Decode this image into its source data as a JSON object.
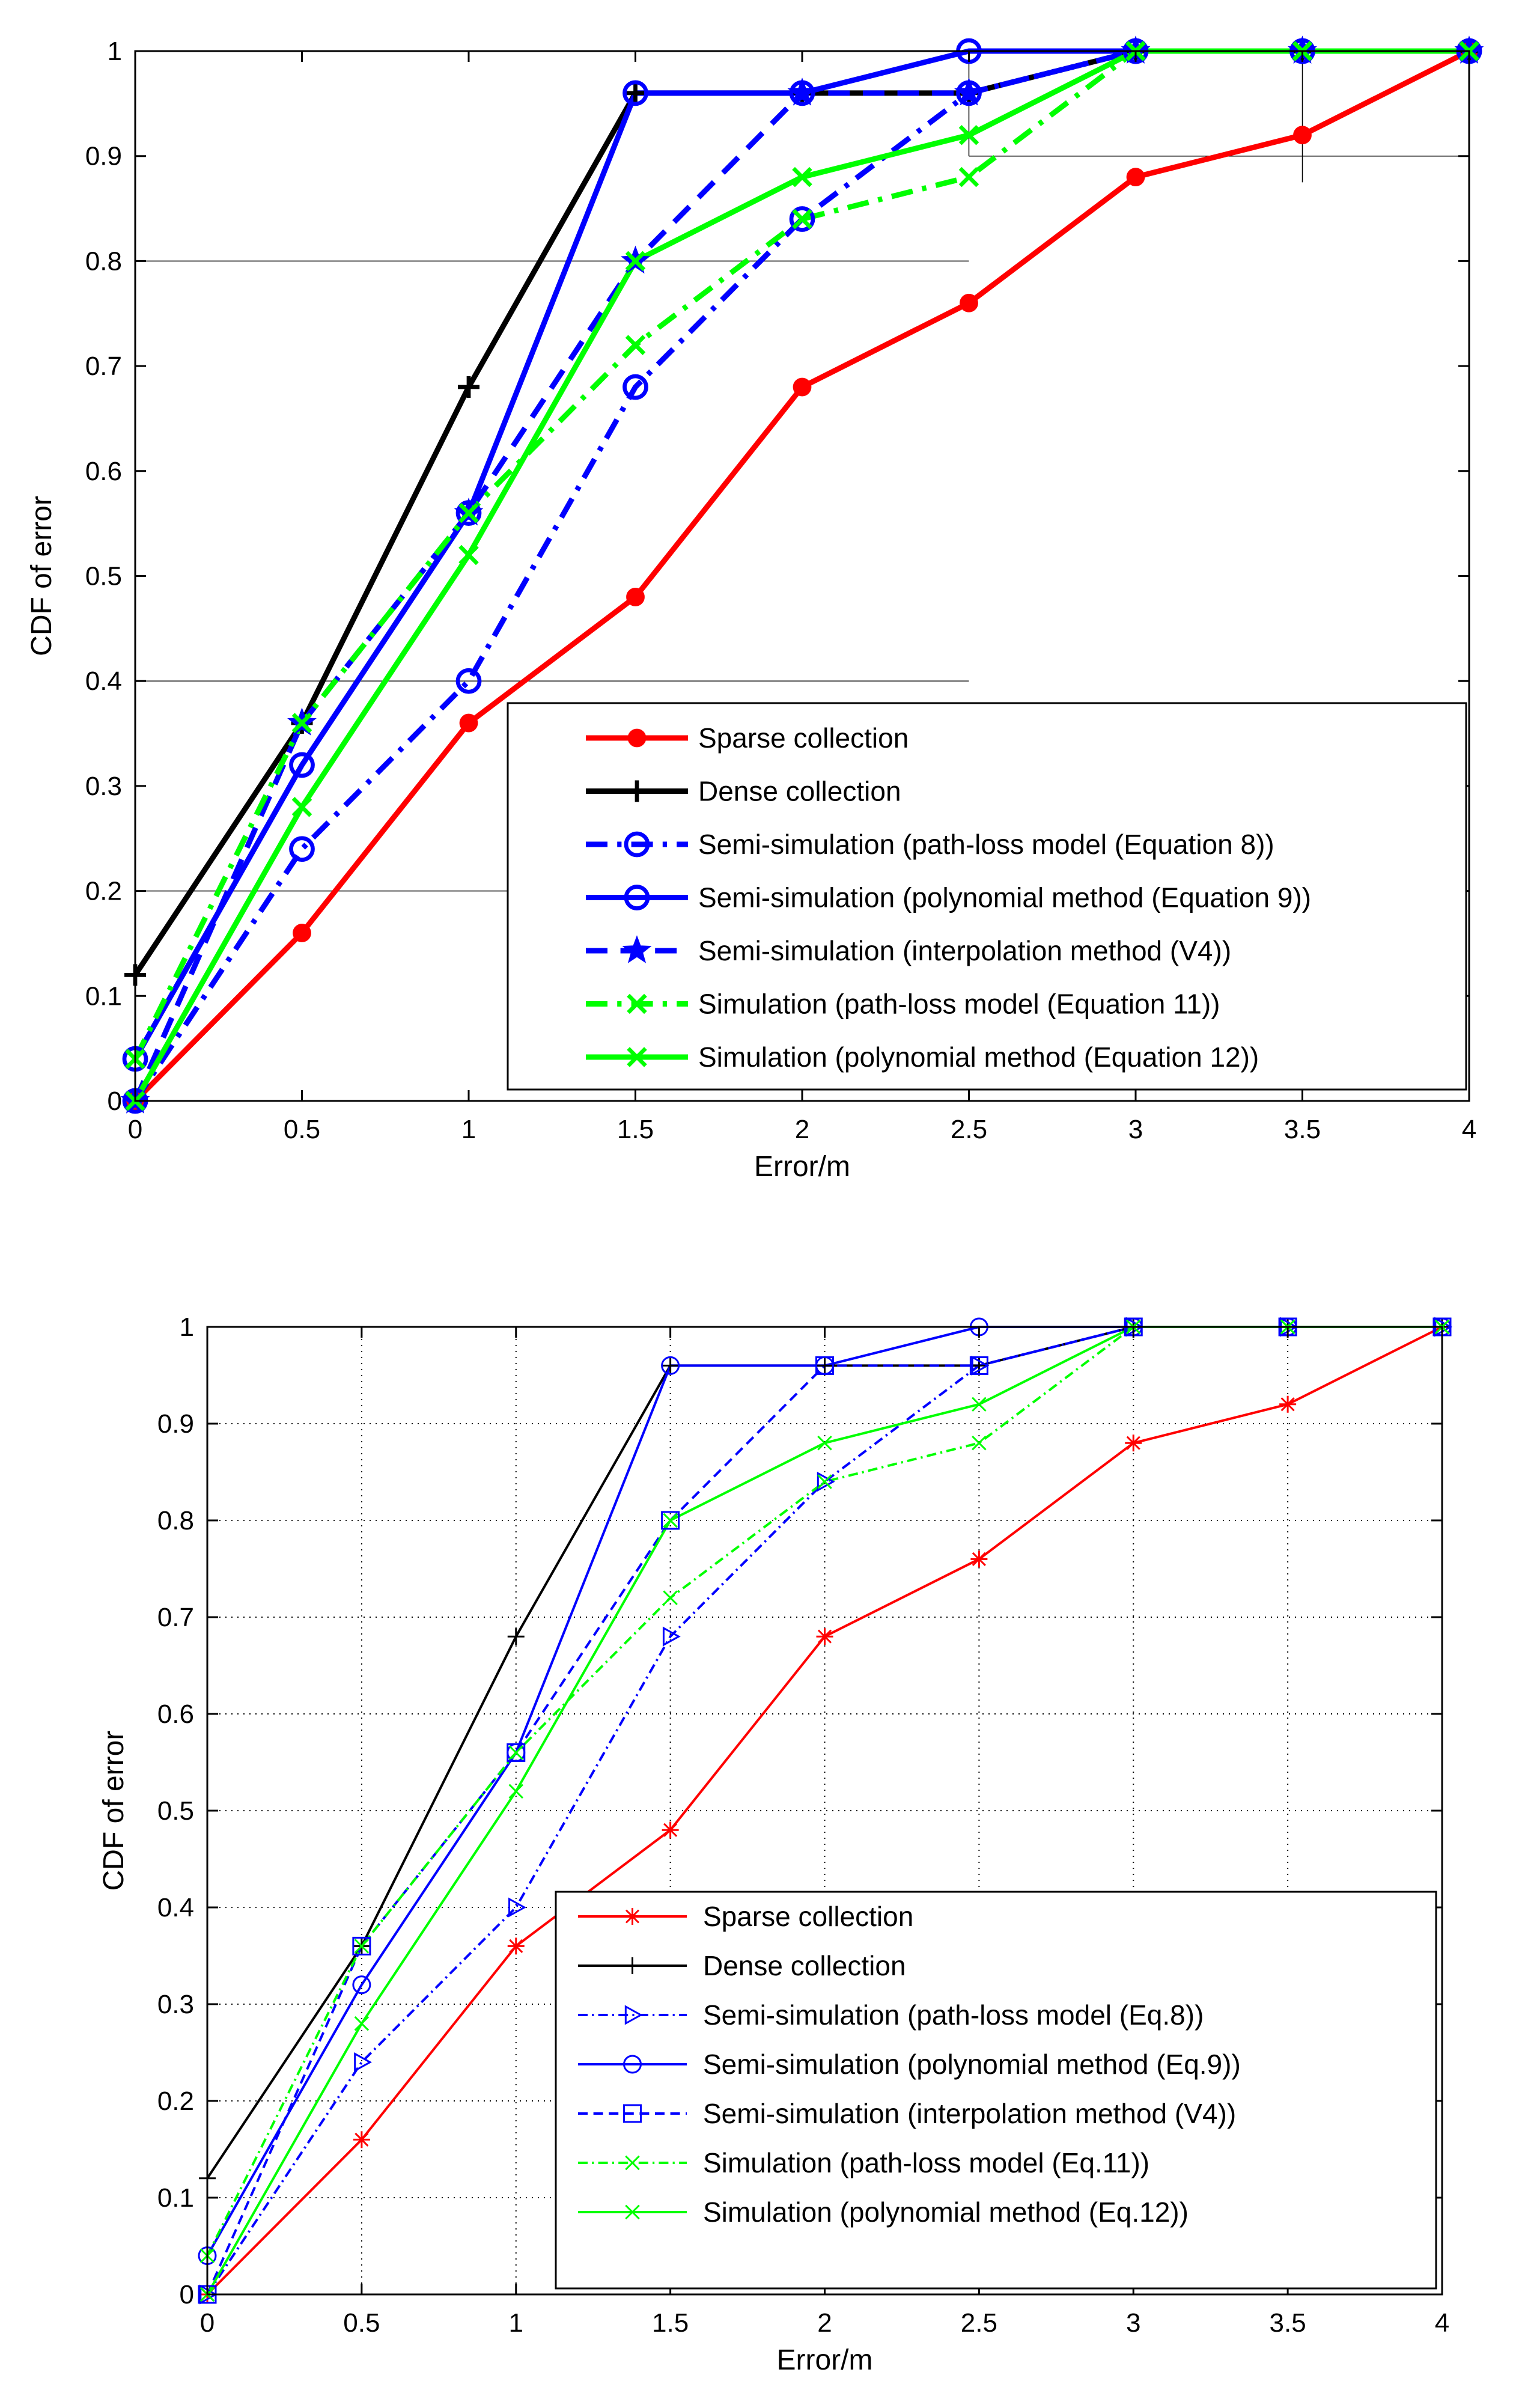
{
  "charts": [
    {
      "chart_data": {
        "type": "line",
        "xlabel": "Error/m",
        "ylabel": "CDF of error",
        "xlim": [
          0,
          4
        ],
        "ylim": [
          0,
          1
        ],
        "xticks": [
          "0",
          "0.5",
          "1",
          "1.5",
          "2",
          "2.5",
          "3",
          "3.5",
          "4"
        ],
        "yticks": [
          "0",
          "0.1",
          "0.2",
          "0.3",
          "0.4",
          "0.5",
          "0.6",
          "0.7",
          "0.8",
          "0.9",
          "1"
        ],
        "x": [
          0,
          0.5,
          1,
          1.5,
          2,
          2.5,
          3,
          3.5,
          4
        ],
        "grid": "partial",
        "legend_position": "bottom-right",
        "series": [
          {
            "name": "Sparse collection",
            "values": [
              0,
              0.16,
              0.36,
              0.48,
              0.68,
              0.76,
              0.88,
              0.92,
              1.0
            ],
            "color": "#ff0000",
            "dash": "solid",
            "marker": "dot"
          },
          {
            "name": "Dense collection",
            "values": [
              0.12,
              0.36,
              0.68,
              0.96,
              0.96,
              0.96,
              1.0,
              1.0,
              1.0
            ],
            "color": "#000000",
            "dash": "solid",
            "marker": "plus"
          },
          {
            "name": "Semi-simulation (path-loss model (Equation 8))",
            "values": [
              0,
              0.24,
              0.4,
              0.68,
              0.84,
              0.96,
              1.0,
              1.0,
              1.0
            ],
            "color": "#0000ff",
            "dash": "dashdot",
            "marker": "circle"
          },
          {
            "name": "Semi-simulation (polynomial method (Equation 9))",
            "values": [
              0.04,
              0.32,
              0.56,
              0.96,
              0.96,
              1.0,
              1.0,
              1.0,
              1.0
            ],
            "color": "#0000ff",
            "dash": "solid",
            "marker": "circle"
          },
          {
            "name": "Semi-simulation (interpolation method (V4))",
            "values": [
              0,
              0.36,
              0.56,
              0.8,
              0.96,
              0.96,
              1.0,
              1.0,
              1.0
            ],
            "color": "#0000ff",
            "dash": "dashed",
            "marker": "star"
          },
          {
            "name": "Simulation (path-loss model (Equation 11))",
            "values": [
              0.04,
              0.36,
              0.56,
              0.72,
              0.84,
              0.88,
              1.0,
              1.0,
              1.0
            ],
            "color": "#00ff00",
            "dash": "dashdot",
            "marker": "x"
          },
          {
            "name": "Simulation (polynomial method (Equation 12))",
            "values": [
              0,
              0.28,
              0.52,
              0.8,
              0.88,
              0.92,
              1.0,
              1.0,
              1.0
            ],
            "color": "#00ff00",
            "dash": "solid",
            "marker": "x"
          }
        ]
      }
    },
    {
      "chart_data": {
        "type": "line",
        "xlabel": "Error/m",
        "ylabel": "CDF of error",
        "xlim": [
          0,
          4
        ],
        "ylim": [
          0,
          1
        ],
        "xticks": [
          "0",
          "0.5",
          "1",
          "1.5",
          "2",
          "2.5",
          "3",
          "3.5",
          "4"
        ],
        "yticks": [
          "0",
          "0.1",
          "0.2",
          "0.3",
          "0.4",
          "0.5",
          "0.6",
          "0.7",
          "0.8",
          "0.9",
          "1"
        ],
        "x": [
          0,
          0.5,
          1,
          1.5,
          2,
          2.5,
          3,
          3.5,
          4
        ],
        "grid": "dotted",
        "legend_position": "bottom-right",
        "series": [
          {
            "name": "Sparse collection",
            "values": [
              0,
              0.16,
              0.36,
              0.48,
              0.68,
              0.76,
              0.88,
              0.92,
              1.0
            ],
            "color": "#ff0000",
            "dash": "solid",
            "marker": "asterisk"
          },
          {
            "name": "Dense collection",
            "values": [
              0.12,
              0.36,
              0.68,
              0.96,
              0.96,
              0.96,
              1.0,
              1.0,
              1.0
            ],
            "color": "#000000",
            "dash": "solid",
            "marker": "plus"
          },
          {
            "name": "Semi-simulation (path-loss model (Eq.8))",
            "values": [
              0,
              0.24,
              0.4,
              0.68,
              0.84,
              0.96,
              1.0,
              1.0,
              1.0
            ],
            "color": "#0000ff",
            "dash": "dashdot",
            "marker": "triangle-right"
          },
          {
            "name": "Semi-simulation (polynomial method (Eq.9))",
            "values": [
              0.04,
              0.32,
              0.56,
              0.96,
              0.96,
              1.0,
              1.0,
              1.0,
              1.0
            ],
            "color": "#0000ff",
            "dash": "solid",
            "marker": "circle"
          },
          {
            "name": "Semi-simulation (interpolation method (V4))",
            "values": [
              0,
              0.36,
              0.56,
              0.8,
              0.96,
              0.96,
              1.0,
              1.0,
              1.0
            ],
            "color": "#0000ff",
            "dash": "dashed",
            "marker": "square"
          },
          {
            "name": "Simulation (path-loss model (Eq.11))",
            "values": [
              0.04,
              0.36,
              0.56,
              0.72,
              0.84,
              0.88,
              1.0,
              1.0,
              1.0
            ],
            "color": "#00ff00",
            "dash": "dashdot",
            "marker": "x"
          },
          {
            "name": "Simulation (polynomial method (Eq.12))",
            "values": [
              0,
              0.28,
              0.52,
              0.8,
              0.88,
              0.92,
              1.0,
              1.0,
              1.0
            ],
            "color": "#00ff00",
            "dash": "solid",
            "marker": "x"
          }
        ]
      }
    }
  ]
}
